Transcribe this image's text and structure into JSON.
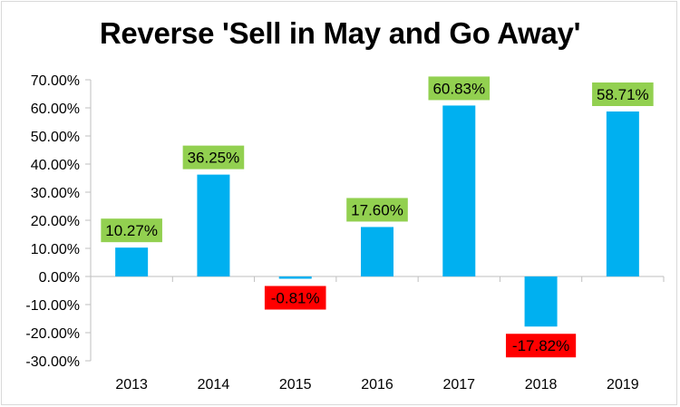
{
  "chart_data": {
    "type": "bar",
    "title": "Reverse 'Sell in May and Go Away'",
    "xlabel": "",
    "ylabel": "",
    "categories": [
      "2013",
      "2014",
      "2015",
      "2016",
      "2017",
      "2018",
      "2019"
    ],
    "series": [
      {
        "values": [
          10.27,
          36.25,
          -0.81,
          17.6,
          60.83,
          -17.82,
          58.71
        ]
      }
    ],
    "data_labels": [
      "10.27%",
      "36.25%",
      "-0.81%",
      "17.60%",
      "60.83%",
      "-17.82%",
      "58.71%"
    ],
    "ylim": [
      -30,
      70
    ],
    "y_ticks": [
      70,
      60,
      50,
      40,
      30,
      20,
      10,
      0,
      -10,
      -20,
      -30
    ],
    "y_tick_labels": [
      "70.00%",
      "60.00%",
      "50.00%",
      "40.00%",
      "30.00%",
      "20.00%",
      "10.00%",
      "0.00%",
      "-10.00%",
      "-20.00%",
      "-30.00%"
    ],
    "grid": false,
    "legend": "none",
    "colors": {
      "bar": "#00b0f0",
      "positive_label_bg": "#92d050",
      "negative_label_bg": "#ff0000",
      "axis": "#bfbfbf"
    }
  }
}
